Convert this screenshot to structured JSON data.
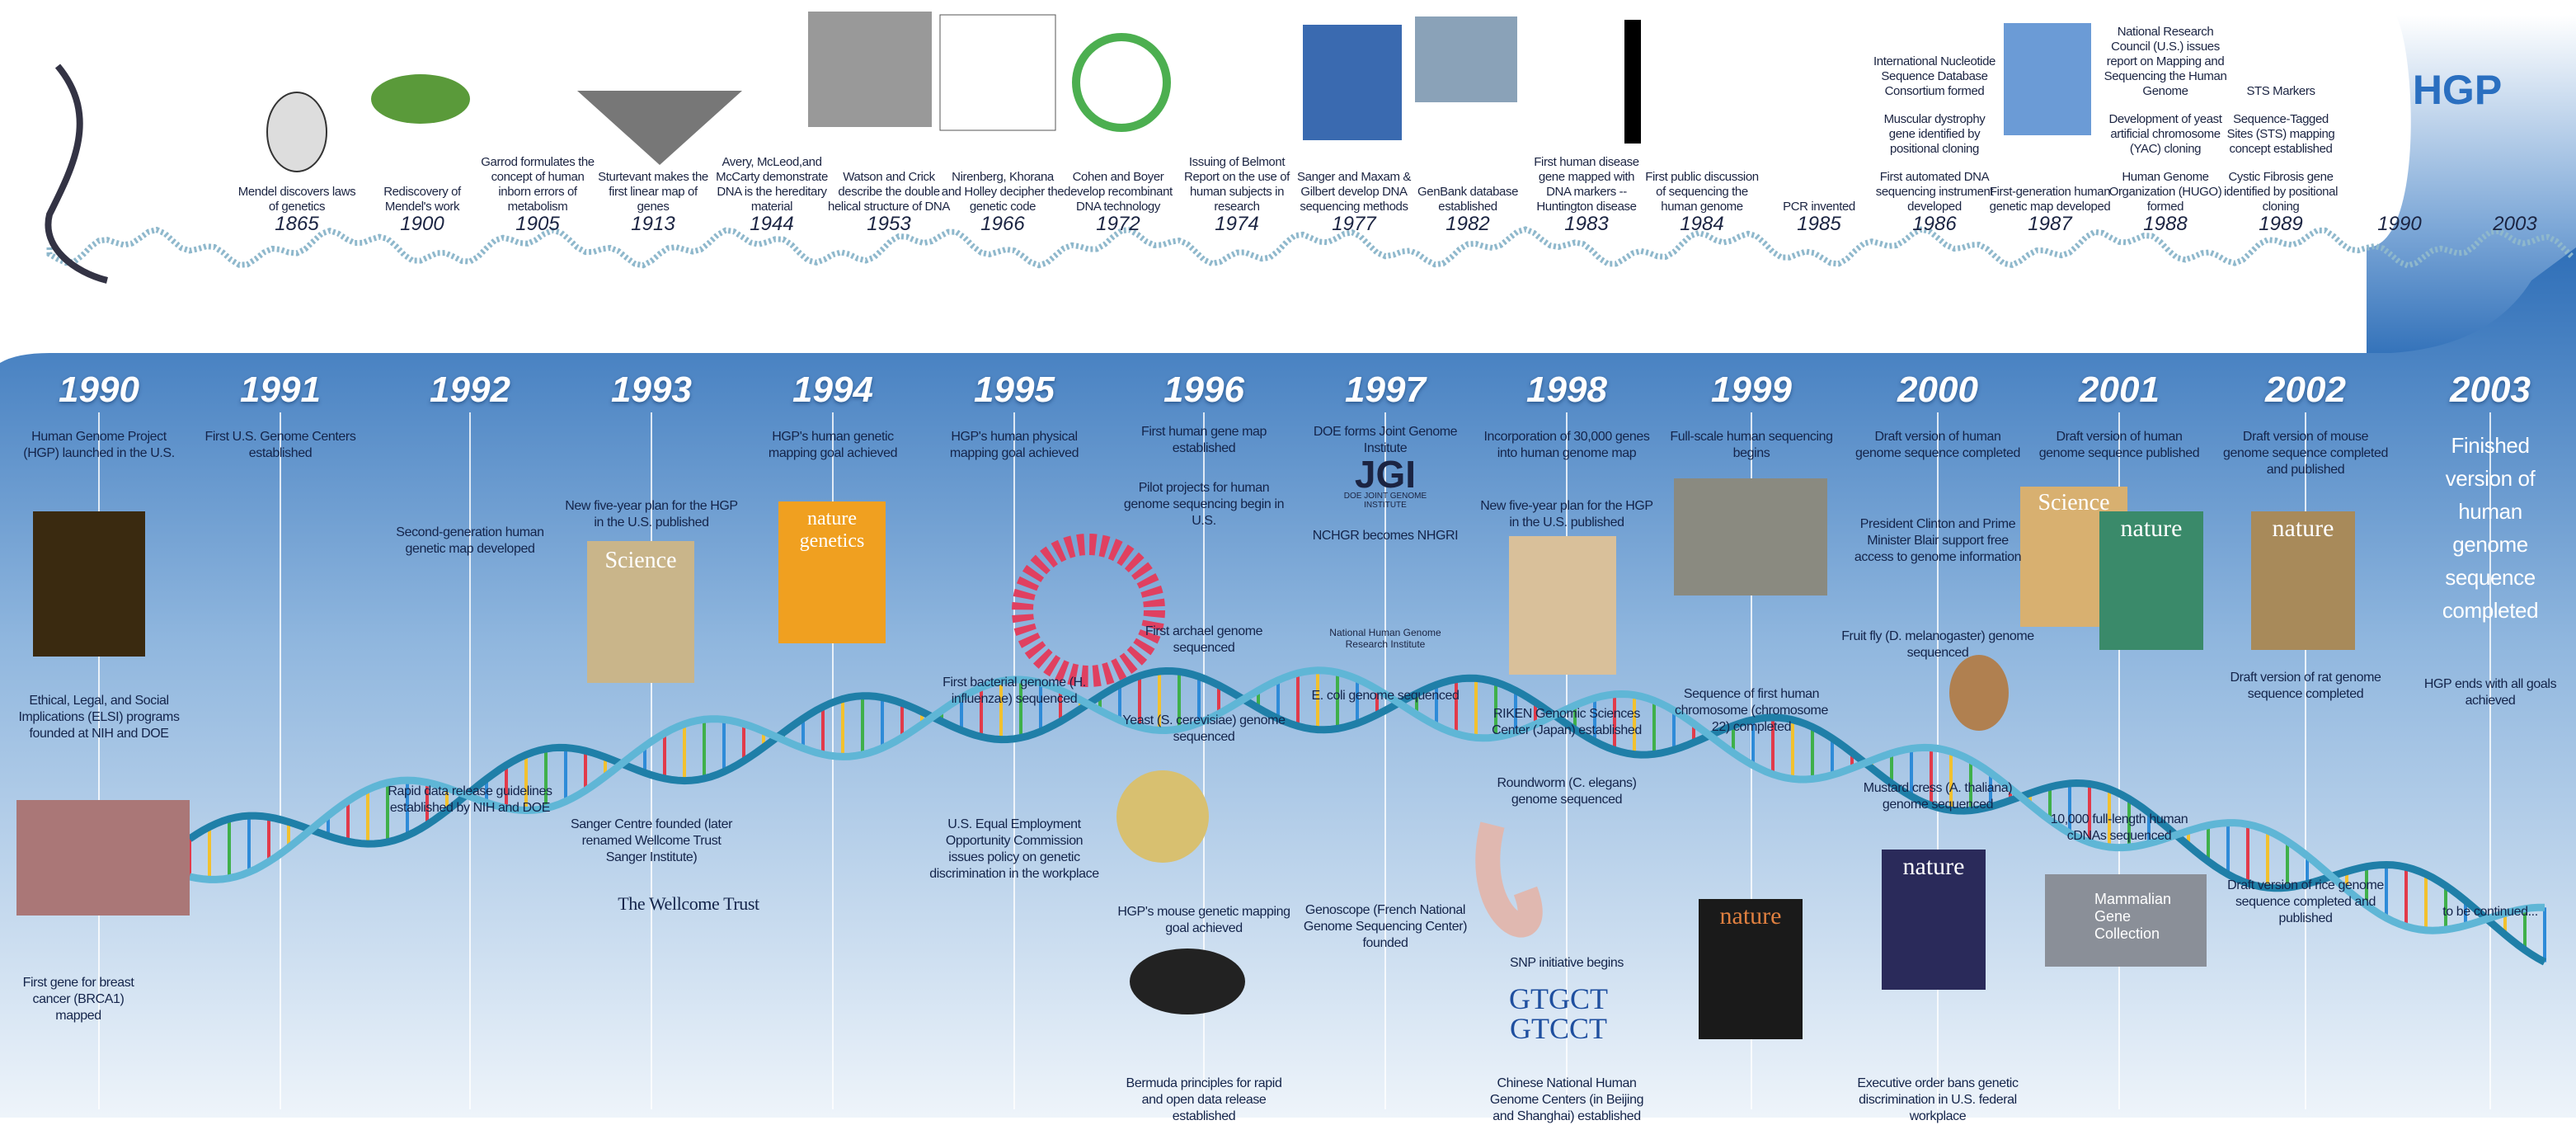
{
  "top_timeline": {
    "events": [
      {
        "year": "1865",
        "texts": [
          "Mendel discovers laws of genetics"
        ]
      },
      {
        "year": "1900",
        "texts": [
          "Rediscovery of Mendel's work"
        ]
      },
      {
        "year": "1905",
        "texts": [
          "Garrod formulates the concept of human inborn errors of metabolism"
        ]
      },
      {
        "year": "1913",
        "texts": [
          "Sturtevant makes the first linear map of genes"
        ]
      },
      {
        "year": "1944",
        "texts": [
          "Avery, McLeod,and McCarty demonstrate DNA is the hereditary material"
        ]
      },
      {
        "year": "1953",
        "texts": [
          "Watson and Crick describe the double helical structure of DNA"
        ]
      },
      {
        "year": "1966",
        "texts": [
          "Nirenberg, Khorana and Holley decipher the genetic code"
        ]
      },
      {
        "year": "1972",
        "texts": [
          "Cohen and Boyer develop recombinant DNA technology"
        ]
      },
      {
        "year": "1974",
        "texts": [
          "Issuing of Belmont Report on the use of human subjects in research"
        ]
      },
      {
        "year": "1977",
        "texts": [
          "Sanger and Maxam & Gilbert develop DNA sequencing methods"
        ]
      },
      {
        "year": "1982",
        "texts": [
          "GenBank database established"
        ]
      },
      {
        "year": "1983",
        "texts": [
          "First human disease gene mapped with DNA markers --Huntington disease"
        ]
      },
      {
        "year": "1984",
        "texts": [
          "First public discussion of sequencing the human genome"
        ]
      },
      {
        "year": "1985",
        "texts": [
          "PCR invented"
        ]
      },
      {
        "year": "1986",
        "texts": [
          "International Nucleotide Sequence Database Consortium formed",
          "Muscular dystrophy gene identified by positional cloning",
          "First automated DNA sequencing instrument developed"
        ]
      },
      {
        "year": "1987",
        "texts": [
          "First-generation human genetic map developed"
        ]
      },
      {
        "year": "1988",
        "texts": [
          "National Research Council (U.S.) issues report on Mapping and Sequencing the Human Genome",
          "Development of yeast artificial chromosome (YAC) cloning",
          "Human Genome Organization (HUGO) formed"
        ]
      },
      {
        "year": "1989",
        "texts": [
          "STS Markers",
          "Sequence-Tagged Sites (STS) mapping concept established",
          "Cystic Fibrosis gene identified by positional cloning"
        ]
      }
    ],
    "hgp": {
      "label": "HGP",
      "start": "1990",
      "end": "2003"
    }
  },
  "bottom_timeline": {
    "years": [
      {
        "year": "1990",
        "events": [
          "Human Genome Project (HGP) launched in the U.S.",
          "Ethical, Legal, and Social Implications (ELSI) programs founded at NIH and DOE",
          "First gene for breast cancer (BRCA1) mapped"
        ]
      },
      {
        "year": "1991",
        "events": [
          "First U.S. Genome Centers established"
        ]
      },
      {
        "year": "1992",
        "events": [
          "Second-generation human genetic map developed",
          "Rapid data release guidelines established by NIH and DOE"
        ]
      },
      {
        "year": "1993",
        "events": [
          "New five-year plan for the HGP in the U.S. published",
          "Sanger Centre founded (later renamed Wellcome Trust Sanger Institute)",
          "The Wellcome Trust"
        ]
      },
      {
        "year": "1994",
        "events": [
          "HGP's human genetic mapping goal achieved"
        ]
      },
      {
        "year": "1995",
        "events": [
          "HGP's human physical mapping goal achieved",
          "First bacterial genome (H. influenzae) sequenced",
          "U.S. Equal Employment Opportunity Commission issues policy on genetic discrimination in the workplace"
        ]
      },
      {
        "year": "1996",
        "events": [
          "First human gene map established",
          "Pilot projects for human genome sequencing begin in U.S.",
          "First archael genome sequenced",
          "Yeast (S. cerevisiae) genome sequenced",
          "HGP's mouse genetic mapping goal achieved",
          "Bermuda principles for rapid and open data release established"
        ]
      },
      {
        "year": "1997",
        "events": [
          "DOE forms Joint Genome Institute",
          "NCHGR becomes NHGRI",
          "E. coli genome sequenced",
          "Genoscope (French National Genome Sequencing Center) founded"
        ]
      },
      {
        "year": "1998",
        "events": [
          "Incorporation of 30,000 genes into human genome map",
          "New five-year plan for the HGP in the U.S. published",
          "RIKEN Genomic Sciences Center (Japan) established",
          "Roundworm (C. elegans) genome sequenced",
          "SNP initiative begins",
          "Chinese National Human Genome Centers (in Beijing and Shanghai) established"
        ]
      },
      {
        "year": "1999",
        "events": [
          "Full-scale human sequencing begins",
          "Sequence of first human chromosome (chromosome 22) completed"
        ]
      },
      {
        "year": "2000",
        "events": [
          "Draft version of human genome sequence completed",
          "President Clinton and Prime Minister Blair support free access to genome information",
          "Fruit fly (D. melanogaster) genome sequenced",
          "Mustard cress (A. thaliana) genome sequenced",
          "Executive order bans genetic discrimination in U.S. federal workplace"
        ]
      },
      {
        "year": "2001",
        "events": [
          "Draft version of human genome sequence published",
          "10,000 full-length human cDNAs sequenced"
        ]
      },
      {
        "year": "2002",
        "events": [
          "Draft version of mouse genome sequence completed and published",
          "Draft version of rat genome sequence completed",
          "Draft version of rice genome sequence completed and published"
        ]
      },
      {
        "year": "2003",
        "events": [
          "Finished version of human genome sequence completed",
          "HGP ends with all goals achieved",
          "to be continued..."
        ]
      }
    ]
  },
  "image_labels": [
    "JGI",
    "DOE JOINT GENOME INSTITUTE",
    "National Human Genome Research Institute",
    "GTGCT",
    "GTCCT",
    "Science",
    "nature genetics",
    "nature",
    "nature",
    "Science",
    "nature",
    "nature",
    "Mammalian Gene Collection"
  ]
}
